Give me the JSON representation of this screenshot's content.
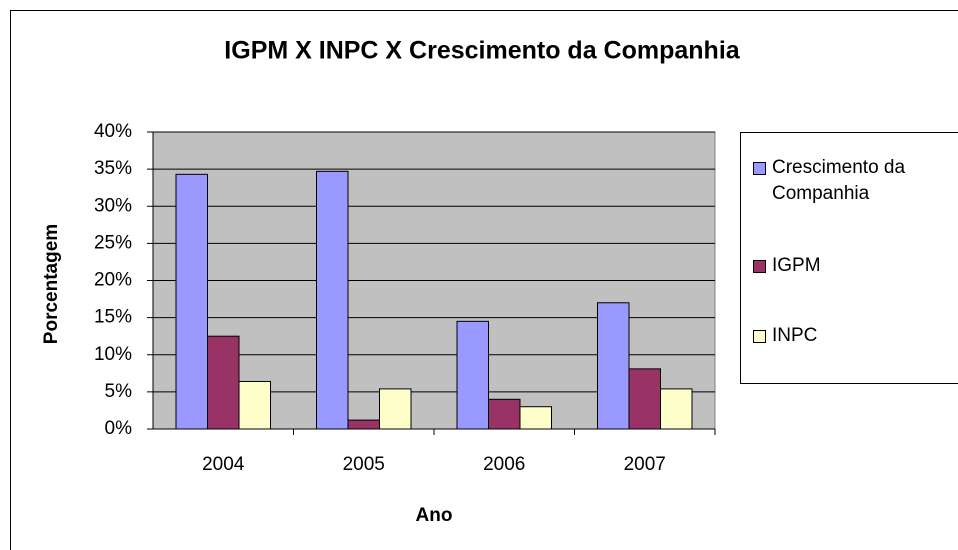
{
  "chart_data": {
    "type": "bar",
    "title": "IGPM X INPC X Crescimento da Companhia",
    "x_label": "Ano",
    "y_label": "Porcentagem",
    "categories": [
      "2004",
      "2005",
      "2006",
      "2007"
    ],
    "series": [
      {
        "name": "Crescimento da Companhia",
        "color": "#9999ff",
        "values": [
          34.3,
          34.7,
          14.5,
          17.0
        ]
      },
      {
        "name": "IGPM",
        "color": "#993366",
        "values": [
          12.5,
          1.2,
          4.0,
          8.1
        ]
      },
      {
        "name": "INPC",
        "color": "#ffffcc",
        "values": [
          6.4,
          5.4,
          3.0,
          5.4
        ]
      }
    ],
    "ylim": [
      0,
      40
    ],
    "yticks": [
      {
        "value": 0,
        "label": "0%"
      },
      {
        "value": 5,
        "label": "5%"
      },
      {
        "value": 10,
        "label": "10%"
      },
      {
        "value": 15,
        "label": "15%"
      },
      {
        "value": 20,
        "label": "20%"
      },
      {
        "value": 25,
        "label": "25%"
      },
      {
        "value": 30,
        "label": "30%"
      },
      {
        "value": 35,
        "label": "35%"
      },
      {
        "value": 40,
        "label": "40%"
      }
    ],
    "grid": true,
    "plot_background": "#c0c0c0",
    "legend": "right"
  }
}
